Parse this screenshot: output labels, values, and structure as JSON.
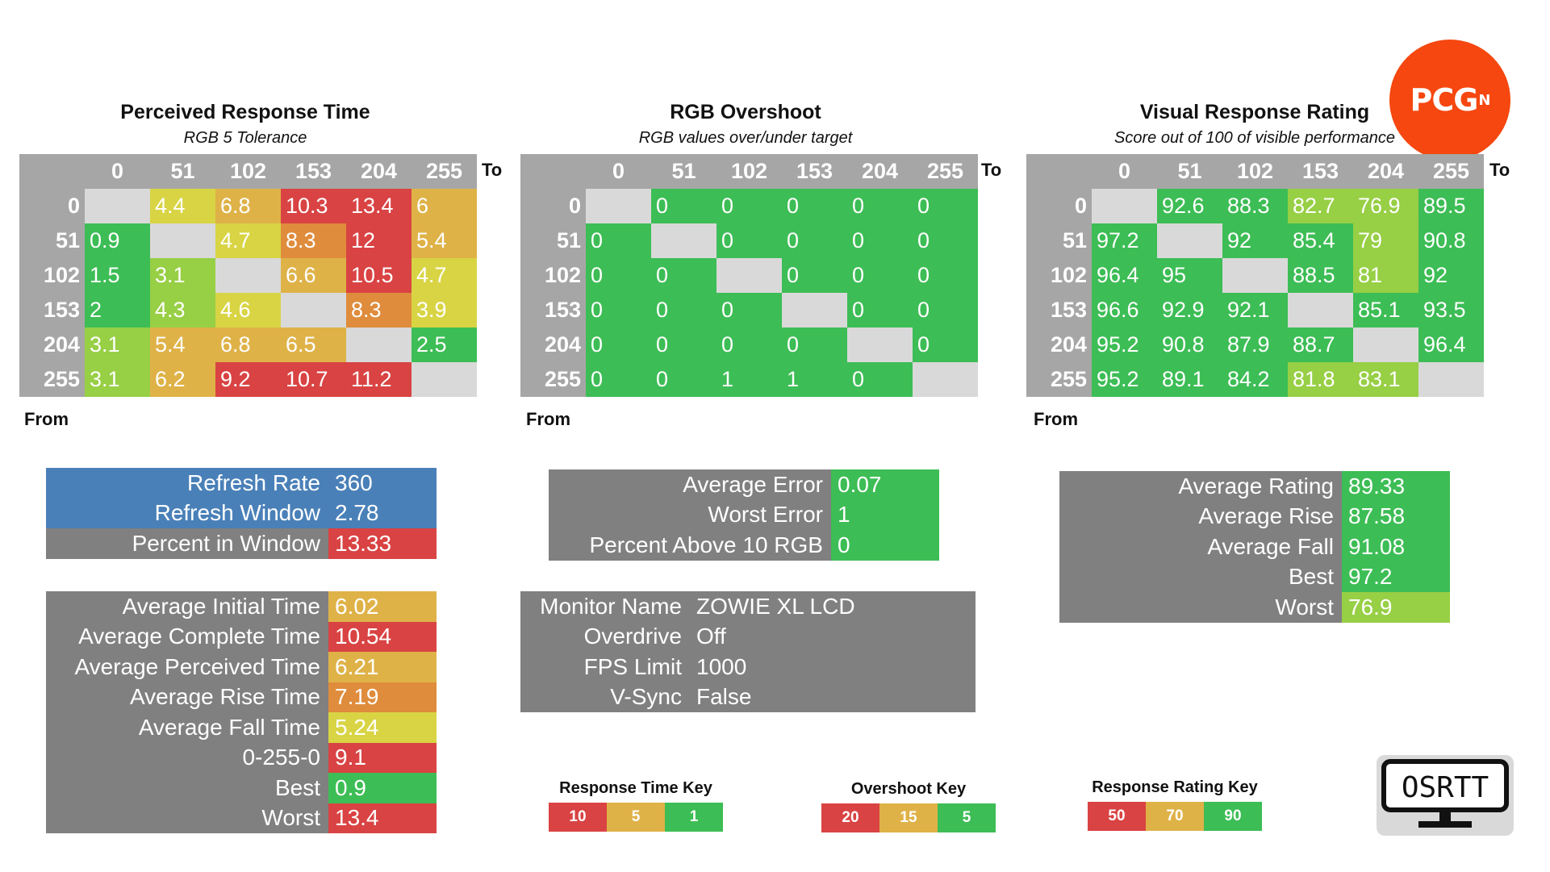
{
  "colors": {
    "red": "#d94343",
    "orange": "#df8c3c",
    "amber": "#dfb248",
    "yellow": "#d8d444",
    "lightgreen": "#97cf45",
    "green": "#3dbd55",
    "diag": "#d9d9d9",
    "header_gray": "#a6a6a6",
    "label_gray": "#808080",
    "blue": "#4a80b8"
  },
  "axis": {
    "to": "To",
    "from": "From"
  },
  "headers": [
    "0",
    "51",
    "102",
    "153",
    "204",
    "255"
  ],
  "perceived": {
    "title": "Perceived Response Time",
    "subtitle": "RGB 5 Tolerance",
    "rows": [
      [
        null,
        "4.4",
        "6.8",
        "10.3",
        "13.4",
        "6"
      ],
      [
        "0.9",
        null,
        "4.7",
        "8.3",
        "12",
        "5.4"
      ],
      [
        "1.5",
        "3.1",
        null,
        "6.6",
        "10.5",
        "4.7"
      ],
      [
        "2",
        "4.3",
        "4.6",
        null,
        "8.3",
        "3.9"
      ],
      [
        "3.1",
        "5.4",
        "6.8",
        "6.5",
        null,
        "2.5"
      ],
      [
        "3.1",
        "6.2",
        "9.2",
        "10.7",
        "11.2",
        null
      ]
    ],
    "colors": [
      [
        null,
        "yellow",
        "amber",
        "red",
        "red",
        "amber"
      ],
      [
        "green",
        null,
        "yellow",
        "orange",
        "red",
        "amber"
      ],
      [
        "green",
        "lightgreen",
        null,
        "amber",
        "red",
        "yellow"
      ],
      [
        "green",
        "lightgreen",
        "yellow",
        null,
        "orange",
        "yellow"
      ],
      [
        "lightgreen",
        "amber",
        "amber",
        "amber",
        null,
        "green"
      ],
      [
        "lightgreen",
        "amber",
        "red",
        "red",
        "red",
        null
      ]
    ]
  },
  "overshoot": {
    "title": "RGB Overshoot",
    "subtitle": "RGB values over/under target",
    "rows": [
      [
        null,
        "0",
        "0",
        "0",
        "0",
        "0"
      ],
      [
        "0",
        null,
        "0",
        "0",
        "0",
        "0"
      ],
      [
        "0",
        "0",
        null,
        "0",
        "0",
        "0"
      ],
      [
        "0",
        "0",
        "0",
        null,
        "0",
        "0"
      ],
      [
        "0",
        "0",
        "0",
        "0",
        null,
        "0"
      ],
      [
        "0",
        "0",
        "1",
        "1",
        "0",
        null
      ]
    ]
  },
  "rating": {
    "title": "Visual Response Rating",
    "subtitle": "Score out of 100 of visible performance",
    "rows": [
      [
        null,
        "92.6",
        "88.3",
        "82.7",
        "76.9",
        "89.5"
      ],
      [
        "97.2",
        null,
        "92",
        "85.4",
        "79",
        "90.8"
      ],
      [
        "96.4",
        "95",
        null,
        "88.5",
        "81",
        "92"
      ],
      [
        "96.6",
        "92.9",
        "92.1",
        null,
        "85.1",
        "93.5"
      ],
      [
        "95.2",
        "90.8",
        "87.9",
        "88.7",
        null,
        "96.4"
      ],
      [
        "95.2",
        "89.1",
        "84.2",
        "81.8",
        "83.1",
        null
      ]
    ],
    "colors": [
      [
        null,
        "green",
        "green",
        "lightgreen",
        "lightgreen",
        "green"
      ],
      [
        "green",
        null,
        "green",
        "green",
        "lightgreen",
        "green"
      ],
      [
        "green",
        "green",
        null,
        "green",
        "lightgreen",
        "green"
      ],
      [
        "green",
        "green",
        "green",
        null,
        "green",
        "green"
      ],
      [
        "green",
        "green",
        "green",
        "green",
        null,
        "green"
      ],
      [
        "green",
        "green",
        "green",
        "lightgreen",
        "lightgreen",
        null
      ]
    ]
  },
  "refresh": [
    {
      "label": "Refresh Rate",
      "value": "360"
    },
    {
      "label": "Refresh Window",
      "value": "2.78"
    },
    {
      "label": "Percent in Window",
      "value": "13.33"
    }
  ],
  "times": [
    {
      "label": "Average Initial Time",
      "value": "6.02"
    },
    {
      "label": "Average Complete Time",
      "value": "10.54"
    },
    {
      "label": "Average Perceived Time",
      "value": "6.21"
    },
    {
      "label": "Average Rise Time",
      "value": "7.19"
    },
    {
      "label": "Average Fall Time",
      "value": "5.24"
    },
    {
      "label": "0-255-0",
      "value": "9.1"
    },
    {
      "label": "Best",
      "value": "0.9"
    },
    {
      "label": "Worst",
      "value": "13.4"
    }
  ],
  "errors": [
    {
      "label": "Average Error",
      "value": "0.07"
    },
    {
      "label": "Worst Error",
      "value": "1"
    },
    {
      "label": "Percent Above 10 RGB",
      "value": "0"
    }
  ],
  "monitor": [
    {
      "label": "Monitor Name",
      "value": "ZOWIE XL LCD"
    },
    {
      "label": "Overdrive",
      "value": "Off"
    },
    {
      "label": "FPS Limit",
      "value": "1000"
    },
    {
      "label": "V-Sync",
      "value": "False"
    }
  ],
  "ratings": [
    {
      "label": "Average Rating",
      "value": "89.33"
    },
    {
      "label": "Average Rise",
      "value": "87.58"
    },
    {
      "label": "Average Fall",
      "value": "91.08"
    },
    {
      "label": "Best",
      "value": "97.2"
    },
    {
      "label": "Worst",
      "value": "76.9"
    }
  ],
  "keys": {
    "response": {
      "title": "Response Time Key",
      "values": [
        "10",
        "5",
        "1"
      ]
    },
    "overshoot": {
      "title": "Overshoot Key",
      "values": [
        "20",
        "15",
        "5"
      ]
    },
    "rating": {
      "title": "Response Rating Key",
      "values": [
        "50",
        "70",
        "90"
      ]
    }
  },
  "logos": {
    "pcgn": {
      "text": "PCG",
      "sup": "N",
      "icon": "pcgn-logo"
    },
    "osrtt": {
      "text": "OSRTT",
      "icon": "osrtt-monitor-logo"
    }
  }
}
